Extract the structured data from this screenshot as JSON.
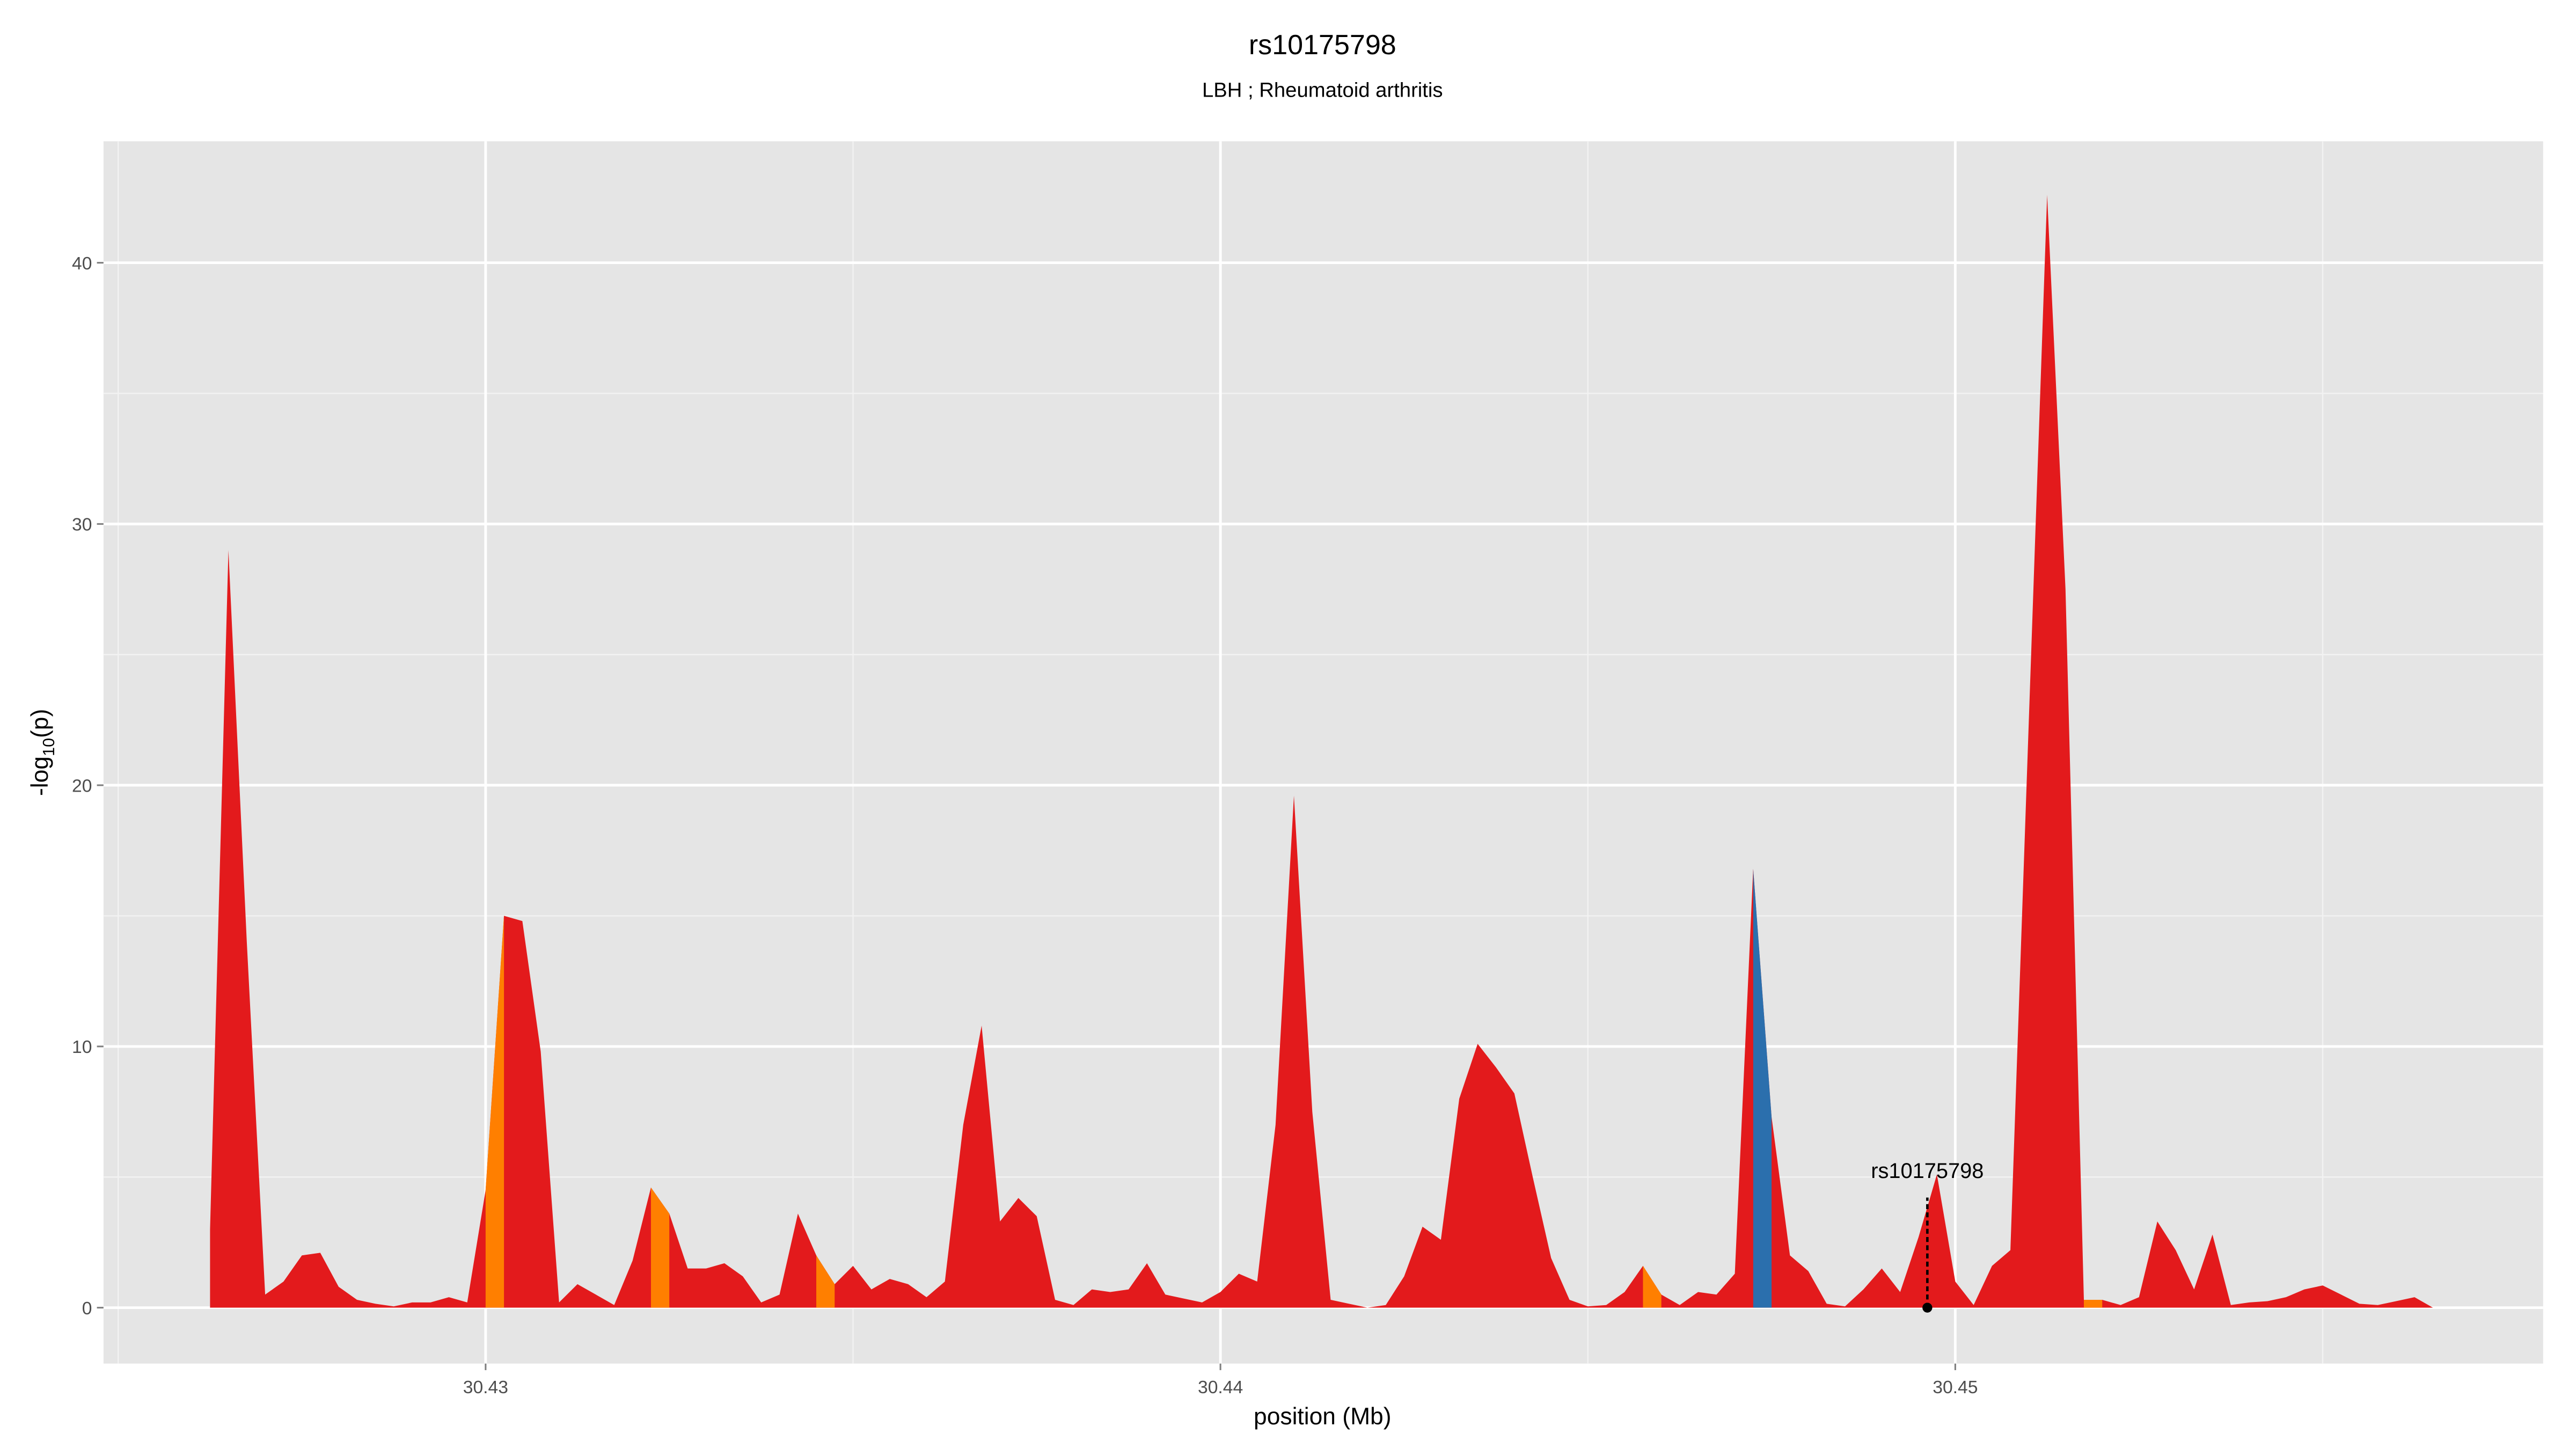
{
  "chart_data": {
    "type": "area",
    "title": "rs10175798",
    "subtitle": "LBH ; Rheumatoid arthritis",
    "xlabel": "position (Mb)",
    "ylabel": {
      "main": "-log",
      "sub": "10",
      "end": "(p)"
    },
    "xlim": [
      30.4248,
      30.458
    ],
    "ylim": [
      -2.14,
      44.65
    ],
    "xticks": [
      30.43,
      30.44,
      30.45
    ],
    "yticks": [
      0,
      10,
      20,
      30,
      40
    ],
    "x_minor_grid": [
      30.425,
      30.435,
      30.445,
      30.455
    ],
    "y_minor_grid": [
      5,
      15,
      25,
      35
    ],
    "grid": true,
    "x": [
      30.42625,
      30.4265,
      30.42675,
      30.427,
      30.42725,
      30.4275,
      30.42775,
      30.428,
      30.42825,
      30.4285,
      30.42875,
      30.429,
      30.42925,
      30.4295,
      30.42975,
      30.43,
      30.43025,
      30.4305,
      30.43075,
      30.431,
      30.43125,
      30.4315,
      30.43175,
      30.432,
      30.43225,
      30.4325,
      30.43275,
      30.433,
      30.43325,
      30.4335,
      30.43375,
      30.434,
      30.43425,
      30.4345,
      30.43475,
      30.435,
      30.43525,
      30.4355,
      30.43575,
      30.436,
      30.43625,
      30.4365,
      30.43675,
      30.437,
      30.43725,
      30.4375,
      30.43775,
      30.438,
      30.43825,
      30.4385,
      30.43875,
      30.439,
      30.43925,
      30.4395,
      30.43975,
      30.44,
      30.44025,
      30.4405,
      30.44075,
      30.441,
      30.44125,
      30.4415,
      30.44175,
      30.442,
      30.44225,
      30.4425,
      30.44275,
      30.443,
      30.44325,
      30.4435,
      30.44375,
      30.444,
      30.44425,
      30.4445,
      30.44475,
      30.445,
      30.44525,
      30.4455,
      30.44575,
      30.446,
      30.44625,
      30.4465,
      30.44675,
      30.447,
      30.44725,
      30.4475,
      30.44775,
      30.448,
      30.44825,
      30.4485,
      30.44875,
      30.449,
      30.44925,
      30.4495,
      30.44975,
      30.45,
      30.45025,
      30.4505,
      30.45075,
      30.451,
      30.45125,
      30.4515,
      30.45175,
      30.452,
      30.45225,
      30.4525,
      30.45275,
      30.453,
      30.45325,
      30.4535,
      30.45375,
      30.454,
      30.45425,
      30.4545,
      30.45475,
      30.455,
      30.45525,
      30.4555,
      30.45575,
      30.456,
      30.45625,
      30.4565
    ],
    "series": [
      {
        "color": "#e31a1c",
        "values": [
          3.0,
          29,
          14,
          0.5,
          1.0,
          2.0,
          2.1,
          0.8,
          0.3,
          0.15,
          0.05,
          0.2,
          0.2,
          0.4,
          0.2,
          4.5,
          15.0,
          14.8,
          9.8,
          0.2,
          0.9,
          0.5,
          0.1,
          1.8,
          4.6,
          3.6,
          1.5,
          1.5,
          1.7,
          1.2,
          0.2,
          0.5,
          3.6,
          2.0,
          0.9,
          1.6,
          0.7,
          1.1,
          0.9,
          0.4,
          1.0,
          7.0,
          10.8,
          3.3,
          4.2,
          3.5,
          0.3,
          0.1,
          0.7,
          0.6,
          0.7,
          1.7,
          0.5,
          0.35,
          0.2,
          0.6,
          1.3,
          1.0,
          7.0,
          19.6,
          7.5,
          0.3,
          0.15,
          0.0,
          0.1,
          1.2,
          3.1,
          2.6,
          8.0,
          10.1,
          9.2,
          8.2,
          5.0,
          1.9,
          0.3,
          0.05,
          0.1,
          0.6,
          1.6,
          0.5,
          0.1,
          0.6,
          0.5,
          1.3,
          16.8,
          7.3,
          2.0,
          1.4,
          0.15,
          0.05,
          0.7,
          1.5,
          0.6,
          2.7,
          5.1,
          1.0,
          0.1,
          1.6,
          2.2,
          22.4,
          42.6,
          27.5,
          0.3,
          0.3,
          0.1,
          0.4,
          3.3,
          2.2,
          0.7,
          2.8,
          0.1,
          0.2,
          0.25,
          0.4,
          0.7,
          0.85,
          0.5,
          0.15,
          0.1,
          0.25,
          0.4,
          0.0
        ]
      },
      {
        "color": "#ff7f00",
        "values": [
          null,
          null,
          null,
          null,
          null,
          null,
          null,
          null,
          null,
          null,
          null,
          null,
          null,
          null,
          null,
          4.5,
          15.0,
          null,
          null,
          null,
          null,
          null,
          null,
          null,
          4.6,
          3.6,
          null,
          null,
          null,
          null,
          null,
          null,
          null,
          2.0,
          0.9,
          null,
          null,
          null,
          null,
          null,
          null,
          null,
          null,
          null,
          null,
          null,
          null,
          null,
          null,
          null,
          null,
          null,
          null,
          null,
          null,
          null,
          null,
          null,
          null,
          null,
          null,
          null,
          null,
          null,
          null,
          null,
          null,
          null,
          null,
          null,
          null,
          null,
          null,
          null,
          null,
          null,
          null,
          null,
          1.6,
          0.5,
          null,
          null,
          null,
          null,
          null,
          null,
          null,
          null,
          null,
          null,
          null,
          null,
          null,
          null,
          null,
          null,
          null,
          null,
          null,
          null,
          null,
          null,
          0.3,
          0.3,
          null,
          null,
          null,
          null,
          null,
          null,
          null,
          null,
          null,
          null,
          null,
          null,
          null,
          null,
          null,
          null,
          null,
          null
        ]
      },
      {
        "color": "#2b6fad",
        "values": [
          null,
          null,
          null,
          null,
          null,
          null,
          null,
          null,
          null,
          null,
          null,
          null,
          null,
          null,
          null,
          null,
          null,
          null,
          null,
          null,
          null,
          null,
          null,
          null,
          null,
          null,
          null,
          null,
          null,
          null,
          null,
          null,
          null,
          null,
          null,
          null,
          null,
          null,
          null,
          null,
          null,
          null,
          null,
          null,
          null,
          null,
          null,
          null,
          null,
          null,
          null,
          null,
          null,
          null,
          null,
          null,
          null,
          null,
          null,
          null,
          null,
          null,
          null,
          null,
          null,
          null,
          null,
          null,
          null,
          null,
          null,
          null,
          null,
          null,
          null,
          null,
          null,
          null,
          null,
          null,
          null,
          null,
          null,
          null,
          16.8,
          7.3,
          null,
          null,
          null,
          null,
          null,
          null,
          null,
          null,
          null,
          null,
          null,
          null,
          null,
          null,
          null,
          null,
          null,
          null,
          null,
          null,
          null,
          null,
          null,
          null,
          null,
          null,
          null,
          null,
          null,
          null,
          null,
          null,
          null,
          null,
          null,
          null
        ]
      }
    ],
    "annotation": {
      "text": "rs10175798",
      "x": 30.44962,
      "y": 0
    }
  }
}
